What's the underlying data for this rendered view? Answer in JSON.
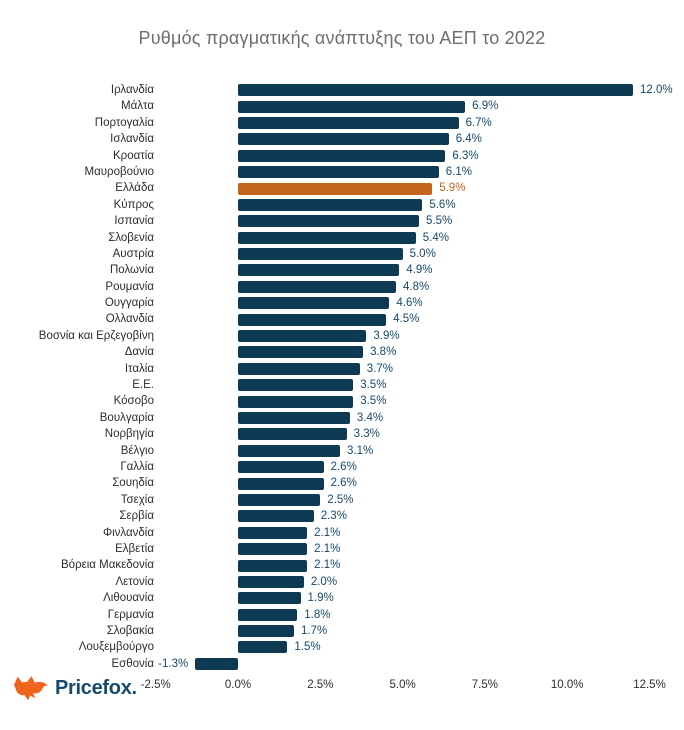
{
  "title": "Ρυθμός πραγματικής ανάπτυξης του ΑΕΠ το 2022",
  "brand": {
    "name": "Pricefox.",
    "fox_color": "#f0641e",
    "text_color": "#164a6e"
  },
  "colors": {
    "bar": "#0d3a52",
    "highlight_bar": "#c4651c",
    "value_text": "#17496b",
    "highlight_value_text": "#c4651c",
    "title_text": "#6e6e6e",
    "axis_text": "#2d2d2d",
    "label_text": "#2d2d2d",
    "background": "#ffffff"
  },
  "chart_data": {
    "type": "bar",
    "orientation": "horizontal",
    "title": "Ρυθμός πραγματικής ανάπτυξης του ΑΕΠ το 2022",
    "xlabel": "",
    "ylabel": "",
    "xlim": [
      -2.5,
      12.5
    ],
    "grid": false,
    "legend": false,
    "highlight_category": "Ελλάδα",
    "highlight_index": 6,
    "x_ticks": [
      -2.5,
      0.0,
      2.5,
      5.0,
      7.5,
      10.0,
      12.5
    ],
    "x_tick_labels": [
      "-2.5%",
      "0.0%",
      "2.5%",
      "5.0%",
      "7.5%",
      "10.0%",
      "12.5%"
    ],
    "categories": [
      "Ιρλανδία",
      "Μάλτα",
      "Πορτογαλία",
      "Ισλανδία",
      "Κροατία",
      "Μαυροβούνιο",
      "Ελλάδα",
      "Κύπρος",
      "Ισπανία",
      "Σλοβενία",
      "Αυστρία",
      "Πολωνία",
      "Ρουμανία",
      "Ουγγαρία",
      "Ολλανδία",
      "Βοσνία και Ερζεγοβίνη",
      "Δανία",
      "Ιταλία",
      "Ε.Ε.",
      "Κόσοβο",
      "Βουλγαρία",
      "Νορβηγία",
      "Βέλγιο",
      "Γαλλία",
      "Σουηδία",
      "Τσεχία",
      "Σερβία",
      "Φινλανδία",
      "Ελβετία",
      "Βόρεια Μακεδονία",
      "Λετονία",
      "Λιθουανία",
      "Γερμανία",
      "Σλοβακία",
      "Λουξεμβούργο",
      "Εσθονία"
    ],
    "values": [
      12.0,
      6.9,
      6.7,
      6.4,
      6.3,
      6.1,
      5.9,
      5.6,
      5.5,
      5.4,
      5.0,
      4.9,
      4.8,
      4.6,
      4.5,
      3.9,
      3.8,
      3.7,
      3.5,
      3.5,
      3.4,
      3.3,
      3.1,
      2.6,
      2.6,
      2.5,
      2.3,
      2.1,
      2.1,
      2.1,
      2.0,
      1.9,
      1.8,
      1.7,
      1.5,
      -1.3
    ],
    "value_labels": [
      "12.0%",
      "6.9%",
      "6.7%",
      "6.4%",
      "6.3%",
      "6.1%",
      "5.9%",
      "5.6%",
      "5.5%",
      "5.4%",
      "5.0%",
      "4.9%",
      "4.8%",
      "4.6%",
      "4.5%",
      "3.9%",
      "3.8%",
      "3.7%",
      "3.5%",
      "3.5%",
      "3.4%",
      "3.3%",
      "3.1%",
      "2.6%",
      "2.6%",
      "2.5%",
      "2.3%",
      "2.1%",
      "2.1%",
      "2.1%",
      "2.0%",
      "1.9%",
      "1.8%",
      "1.7%",
      "1.5%",
      "-1.3%"
    ]
  }
}
